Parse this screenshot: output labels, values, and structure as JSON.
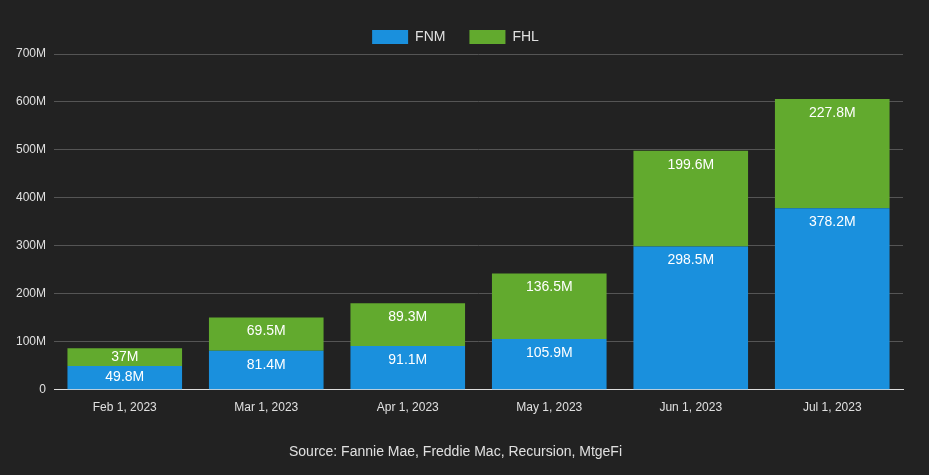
{
  "chart_data": {
    "type": "bar",
    "stacked": true,
    "grid": true,
    "legend": "top",
    "data_labels": true,
    "categories": [
      "Feb 1, 2023",
      "Mar 1, 2023",
      "Apr 1, 2023",
      "May 1, 2023",
      "Jun 1, 2023",
      "Jul 1, 2023"
    ],
    "series": [
      {
        "name": "FNM",
        "color": "#1a90dd",
        "values": [
          49.8,
          81.4,
          91.1,
          105.9,
          298.5,
          378.2
        ],
        "value_labels": [
          "49.8M",
          "81.4M",
          "91.1M",
          "105.9M",
          "298.5M",
          "378.2M"
        ]
      },
      {
        "name": "FHL",
        "color": "#62aa2e",
        "values": [
          37,
          69.5,
          89.3,
          136.5,
          199.6,
          227.8
        ],
        "value_labels": [
          "37M",
          "69.5M",
          "89.3M",
          "136.5M",
          "199.6M",
          "227.8M"
        ]
      }
    ],
    "ylim": [
      0,
      700
    ],
    "yticks": [
      0,
      {
        "value": 100,
        "label": "100M"
      },
      {
        "value": 200,
        "label": "200M"
      },
      {
        "value": 300,
        "label": "300M"
      },
      {
        "value": 400,
        "label": "400M"
      },
      {
        "value": 500,
        "label": "500M"
      },
      {
        "value": 600,
        "label": "600M"
      },
      {
        "value": 700,
        "label": "700M"
      }
    ],
    "source": "Source: Fannie Mae, Freddie Mac, Recursion, MtgeFi"
  }
}
